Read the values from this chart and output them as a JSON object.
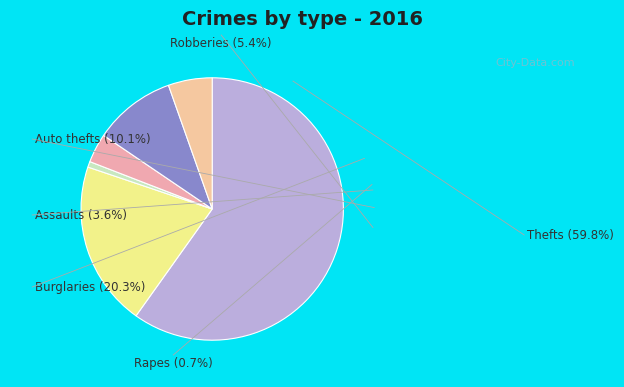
{
  "title": "Crimes by type - 2016",
  "title_fontsize": 14,
  "pct_labels": [
    "Thefts (59.8%)",
    "Burglaries (20.3%)",
    "Rapes (0.7%)",
    "Assaults (3.6%)",
    "Auto thefts (10.1%)",
    "Robberies (5.4%)"
  ],
  "values": [
    59.8,
    20.3,
    0.7,
    3.6,
    10.1,
    5.4
  ],
  "colors": [
    "#bbaedd",
    "#f2f28a",
    "#c8e8c0",
    "#f0a8b0",
    "#8888cc",
    "#f5c8a0"
  ],
  "bg_cyan": "#00e5f5",
  "bg_main": "#d0e8d8",
  "startangle": 90,
  "label_fontsize": 8.5,
  "watermark": "City-Data.com",
  "label_color": "#333333",
  "line_color": "#aaaaaa",
  "title_color": "#222222"
}
